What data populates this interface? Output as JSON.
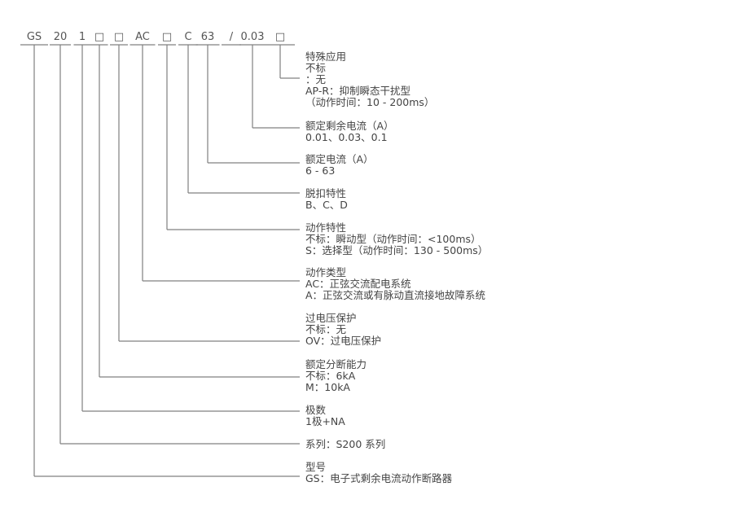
{
  "code_segments": [
    "GS",
    "20",
    "1",
    "□",
    "□",
    "AC",
    "□",
    "C",
    "63",
    "/",
    "0.03",
    "□"
  ],
  "blocks": [
    {
      "title": "特殊应用",
      "lines": [
        "不标",
        "：无",
        "AP-R：抑制瞬态干扰型",
        "（动作时间：10 - 200ms）"
      ]
    },
    {
      "title": "额定剩余电流（A）",
      "lines": [
        "0.01、0.03、0.1"
      ]
    },
    {
      "title": "额定电流（A）",
      "lines": [
        "6 - 63"
      ]
    },
    {
      "title": "脱扣特性",
      "lines": [
        "B、C、D"
      ]
    },
    {
      "title": "动作特性",
      "lines": [
        "不标：瞬动型（动作时间：<100ms）",
        "S：选择型（动作时间：130 - 500ms）"
      ]
    },
    {
      "title": "动作类型",
      "lines": [
        "AC：正弦交流配电系统",
        "A：正弦交流或有脉动直流接地故障系统"
      ]
    },
    {
      "title": "过电压保护",
      "lines": [
        "不标：无",
        "OV：过电压保护"
      ]
    },
    {
      "title": "额定分断能力",
      "lines": [
        "不标：6kA",
        "M：10kA"
      ]
    },
    {
      "title": "极数",
      "lines": [
        "1极+NA"
      ]
    },
    {
      "title": "",
      "lines": [
        "系列：S200 系列"
      ]
    },
    {
      "title": "型号",
      "lines": [
        "GS：电子式剩余电流动作断路器"
      ]
    }
  ],
  "colors": {
    "text": "#444444",
    "line": "#808080"
  }
}
